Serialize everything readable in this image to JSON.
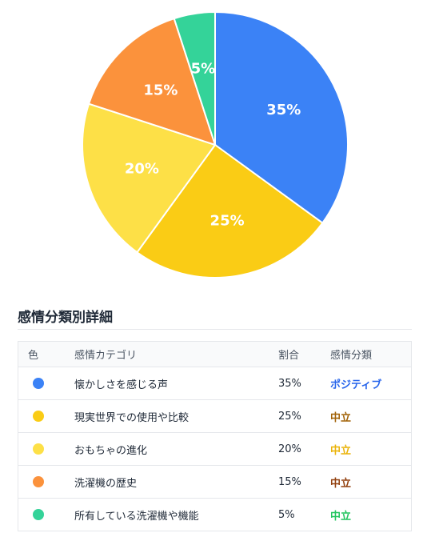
{
  "chart_data": {
    "type": "pie",
    "slices": [
      {
        "label": "懐かしさを感じる声",
        "value": 35,
        "display": "35%",
        "color": "#3b82f6"
      },
      {
        "label": "現実世界での使用や比較",
        "value": 25,
        "display": "25%",
        "color": "#facc15"
      },
      {
        "label": "おもちゃの進化",
        "value": 20,
        "display": "20%",
        "color": "#fde047"
      },
      {
        "label": "洗濯機の歴史",
        "value": 15,
        "display": "15%",
        "color": "#fb923c"
      },
      {
        "label": "所有している洗濯機や機能",
        "value": 5,
        "display": "5%",
        "color": "#34d399"
      }
    ]
  },
  "section": {
    "title": "感情分類別詳細"
  },
  "table": {
    "headers": {
      "color": "色",
      "category": "感情カテゴリ",
      "ratio": "割合",
      "classification": "感情分類"
    },
    "rows": [
      {
        "category": "懐かしさを感じる声",
        "ratio": "35%",
        "classification": "ポジティブ",
        "dot_color": "#3b82f6",
        "class_color": "#2563eb"
      },
      {
        "category": "現実世界での使用や比較",
        "ratio": "25%",
        "classification": "中立",
        "dot_color": "#facc15",
        "class_color": "#a16207"
      },
      {
        "category": "おもちゃの進化",
        "ratio": "20%",
        "classification": "中立",
        "dot_color": "#fde047",
        "class_color": "#eab308"
      },
      {
        "category": "洗濯機の歴史",
        "ratio": "15%",
        "classification": "中立",
        "dot_color": "#fb923c",
        "class_color": "#92400e"
      },
      {
        "category": "所有している洗濯機や機能",
        "ratio": "5%",
        "classification": "中立",
        "dot_color": "#34d399",
        "class_color": "#22c55e"
      }
    ]
  }
}
